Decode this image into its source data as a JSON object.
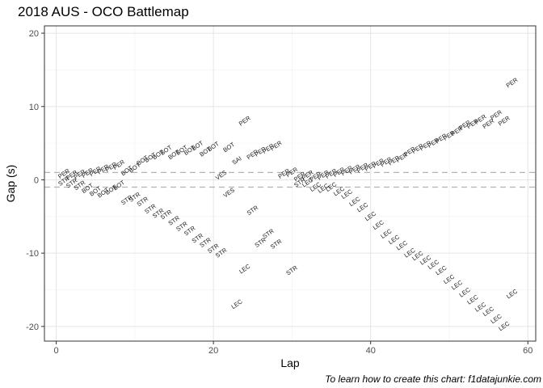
{
  "chart_data": {
    "type": "scatter",
    "title": "2018 AUS - OCO Battlemap",
    "caption": "To learn how to create this chart: f1datajunkie.com",
    "xlabel": "Lap",
    "ylabel": "Gap (s)",
    "xlim": [
      -1.5,
      61
    ],
    "ylim": [
      -22,
      21
    ],
    "x_ticks": [
      0,
      20,
      40,
      60
    ],
    "y_ticks": [
      -20,
      -10,
      0,
      10,
      20
    ],
    "reference_lines": [
      1,
      -1
    ],
    "grid": true,
    "points": [
      {
        "x": 1,
        "y": 0.8,
        "label": "PER"
      },
      {
        "x": 1,
        "y": -0.2,
        "label": "STR"
      },
      {
        "x": 2,
        "y": 0.6,
        "label": "PER"
      },
      {
        "x": 2,
        "y": -0.5,
        "label": "STR"
      },
      {
        "x": 3,
        "y": 0.7,
        "label": "PER"
      },
      {
        "x": 3,
        "y": -0.8,
        "label": "STR"
      },
      {
        "x": 4,
        "y": 0.9,
        "label": "PER"
      },
      {
        "x": 4,
        "y": -1.2,
        "label": "BOT"
      },
      {
        "x": 5,
        "y": 1.1,
        "label": "PER"
      },
      {
        "x": 5,
        "y": -1.6,
        "label": "BOT"
      },
      {
        "x": 6,
        "y": 1.4,
        "label": "PER"
      },
      {
        "x": 6,
        "y": -1.8,
        "label": "BOT"
      },
      {
        "x": 7,
        "y": 1.7,
        "label": "PER"
      },
      {
        "x": 7,
        "y": -1.4,
        "label": "BOT"
      },
      {
        "x": 8,
        "y": 2.0,
        "label": "PER"
      },
      {
        "x": 8,
        "y": -0.8,
        "label": "BOT"
      },
      {
        "x": 9,
        "y": 1.2,
        "label": "BOT"
      },
      {
        "x": 9,
        "y": -2.8,
        "label": "STR"
      },
      {
        "x": 10,
        "y": 1.6,
        "label": "BOT"
      },
      {
        "x": 10,
        "y": -2.4,
        "label": "STR"
      },
      {
        "x": 11,
        "y": 2.6,
        "label": "BOT"
      },
      {
        "x": 11,
        "y": -3.0,
        "label": "STR"
      },
      {
        "x": 12,
        "y": 3.0,
        "label": "BOT"
      },
      {
        "x": 12,
        "y": -4.0,
        "label": "STR"
      },
      {
        "x": 13,
        "y": 3.4,
        "label": "BOT"
      },
      {
        "x": 13,
        "y": -4.6,
        "label": "STR"
      },
      {
        "x": 14,
        "y": 4.0,
        "label": "BOT"
      },
      {
        "x": 14,
        "y": -4.8,
        "label": "STR"
      },
      {
        "x": 15,
        "y": 3.4,
        "label": "BOT"
      },
      {
        "x": 15,
        "y": -5.6,
        "label": "STR"
      },
      {
        "x": 16,
        "y": 4.0,
        "label": "BOT"
      },
      {
        "x": 16,
        "y": -6.4,
        "label": "STR"
      },
      {
        "x": 17,
        "y": 4.0,
        "label": "BOT"
      },
      {
        "x": 17,
        "y": -7.0,
        "label": "STR"
      },
      {
        "x": 18,
        "y": 4.6,
        "label": "BOT"
      },
      {
        "x": 18,
        "y": -8.0,
        "label": "STR"
      },
      {
        "x": 19,
        "y": 3.8,
        "label": "BOT"
      },
      {
        "x": 19,
        "y": -8.6,
        "label": "STR"
      },
      {
        "x": 20,
        "y": 4.5,
        "label": "BOT"
      },
      {
        "x": 20,
        "y": -9.4,
        "label": "STR"
      },
      {
        "x": 21,
        "y": 0.6,
        "label": "VES"
      },
      {
        "x": 21,
        "y": -10.0,
        "label": "STR"
      },
      {
        "x": 22,
        "y": 4.4,
        "label": "BOT"
      },
      {
        "x": 22,
        "y": -1.8,
        "label": "VES"
      },
      {
        "x": 23,
        "y": 2.6,
        "label": "SAI"
      },
      {
        "x": 23,
        "y": -17.0,
        "label": "LEC"
      },
      {
        "x": 24,
        "y": 8.0,
        "label": "PER"
      },
      {
        "x": 24,
        "y": -12.2,
        "label": "LEC"
      },
      {
        "x": 25,
        "y": 3.4,
        "label": "PER"
      },
      {
        "x": 25,
        "y": -4.2,
        "label": "STR"
      },
      {
        "x": 26,
        "y": 3.8,
        "label": "PER"
      },
      {
        "x": 26,
        "y": -8.6,
        "label": "STR"
      },
      {
        "x": 27,
        "y": 4.2,
        "label": "PER"
      },
      {
        "x": 27,
        "y": -7.4,
        "label": "STR"
      },
      {
        "x": 28,
        "y": 4.6,
        "label": "PER"
      },
      {
        "x": 28,
        "y": -8.8,
        "label": "STR"
      },
      {
        "x": 29,
        "y": 0.8,
        "label": "PER"
      },
      {
        "x": 30,
        "y": 1.0,
        "label": "PER"
      },
      {
        "x": 30,
        "y": -12.4,
        "label": "STR"
      },
      {
        "x": 31,
        "y": 0.4,
        "label": "PER"
      },
      {
        "x": 31,
        "y": -0.4,
        "label": "STR"
      },
      {
        "x": 32,
        "y": 0.6,
        "label": "PER"
      },
      {
        "x": 32,
        "y": -0.4,
        "label": "LEC"
      },
      {
        "x": 33,
        "y": 0.4,
        "label": "PER"
      },
      {
        "x": 33,
        "y": -1.0,
        "label": "LEC"
      },
      {
        "x": 34,
        "y": 0.6,
        "label": "PER"
      },
      {
        "x": 34,
        "y": -1.2,
        "label": "LEC"
      },
      {
        "x": 35,
        "y": 0.8,
        "label": "PER"
      },
      {
        "x": 35,
        "y": -1.0,
        "label": "LEC"
      },
      {
        "x": 36,
        "y": 1.0,
        "label": "PER"
      },
      {
        "x": 36,
        "y": -1.6,
        "label": "LEC"
      },
      {
        "x": 37,
        "y": 1.2,
        "label": "PER"
      },
      {
        "x": 37,
        "y": -2.0,
        "label": "LEC"
      },
      {
        "x": 38,
        "y": 1.4,
        "label": "PER"
      },
      {
        "x": 38,
        "y": -3.0,
        "label": "LEC"
      },
      {
        "x": 39,
        "y": 1.6,
        "label": "PER"
      },
      {
        "x": 39,
        "y": -3.8,
        "label": "LEC"
      },
      {
        "x": 40,
        "y": 1.8,
        "label": "PER"
      },
      {
        "x": 40,
        "y": -5.0,
        "label": "LEC"
      },
      {
        "x": 41,
        "y": 2.2,
        "label": "PER"
      },
      {
        "x": 41,
        "y": -6.2,
        "label": "LEC"
      },
      {
        "x": 42,
        "y": 2.4,
        "label": "PER"
      },
      {
        "x": 42,
        "y": -7.4,
        "label": "LEC"
      },
      {
        "x": 43,
        "y": 2.6,
        "label": "PER"
      },
      {
        "x": 43,
        "y": -8.2,
        "label": "LEC"
      },
      {
        "x": 44,
        "y": 3.0,
        "label": "PER"
      },
      {
        "x": 44,
        "y": -9.0,
        "label": "LEC"
      },
      {
        "x": 45,
        "y": 3.8,
        "label": "PER"
      },
      {
        "x": 45,
        "y": -10.0,
        "label": "LEC"
      },
      {
        "x": 46,
        "y": 4.2,
        "label": "PER"
      },
      {
        "x": 46,
        "y": -10.4,
        "label": "LEC"
      },
      {
        "x": 47,
        "y": 4.6,
        "label": "PER"
      },
      {
        "x": 47,
        "y": -11.0,
        "label": "LEC"
      },
      {
        "x": 48,
        "y": 5.0,
        "label": "PER"
      },
      {
        "x": 48,
        "y": -11.6,
        "label": "LEC"
      },
      {
        "x": 49,
        "y": 5.6,
        "label": "PER"
      },
      {
        "x": 49,
        "y": -12.4,
        "label": "LEC"
      },
      {
        "x": 50,
        "y": 6.0,
        "label": "PER"
      },
      {
        "x": 50,
        "y": -13.6,
        "label": "LEC"
      },
      {
        "x": 51,
        "y": 6.6,
        "label": "PER"
      },
      {
        "x": 51,
        "y": -14.4,
        "label": "LEC"
      },
      {
        "x": 52,
        "y": 7.4,
        "label": "PER"
      },
      {
        "x": 52,
        "y": -15.4,
        "label": "LEC"
      },
      {
        "x": 53,
        "y": 7.6,
        "label": "PER"
      },
      {
        "x": 53,
        "y": -16.4,
        "label": "LEC"
      },
      {
        "x": 54,
        "y": 8.2,
        "label": "PER"
      },
      {
        "x": 54,
        "y": -17.4,
        "label": "LEC"
      },
      {
        "x": 55,
        "y": 7.6,
        "label": "PER"
      },
      {
        "x": 55,
        "y": -18.0,
        "label": "LEC"
      },
      {
        "x": 56,
        "y": 8.8,
        "label": "PER"
      },
      {
        "x": 56,
        "y": -19.0,
        "label": "LEC"
      },
      {
        "x": 57,
        "y": 8.0,
        "label": "PER"
      },
      {
        "x": 57,
        "y": -20.0,
        "label": "LEC"
      },
      {
        "x": 58,
        "y": 13.2,
        "label": "PER"
      },
      {
        "x": 58,
        "y": -15.6,
        "label": "LEC"
      }
    ]
  }
}
